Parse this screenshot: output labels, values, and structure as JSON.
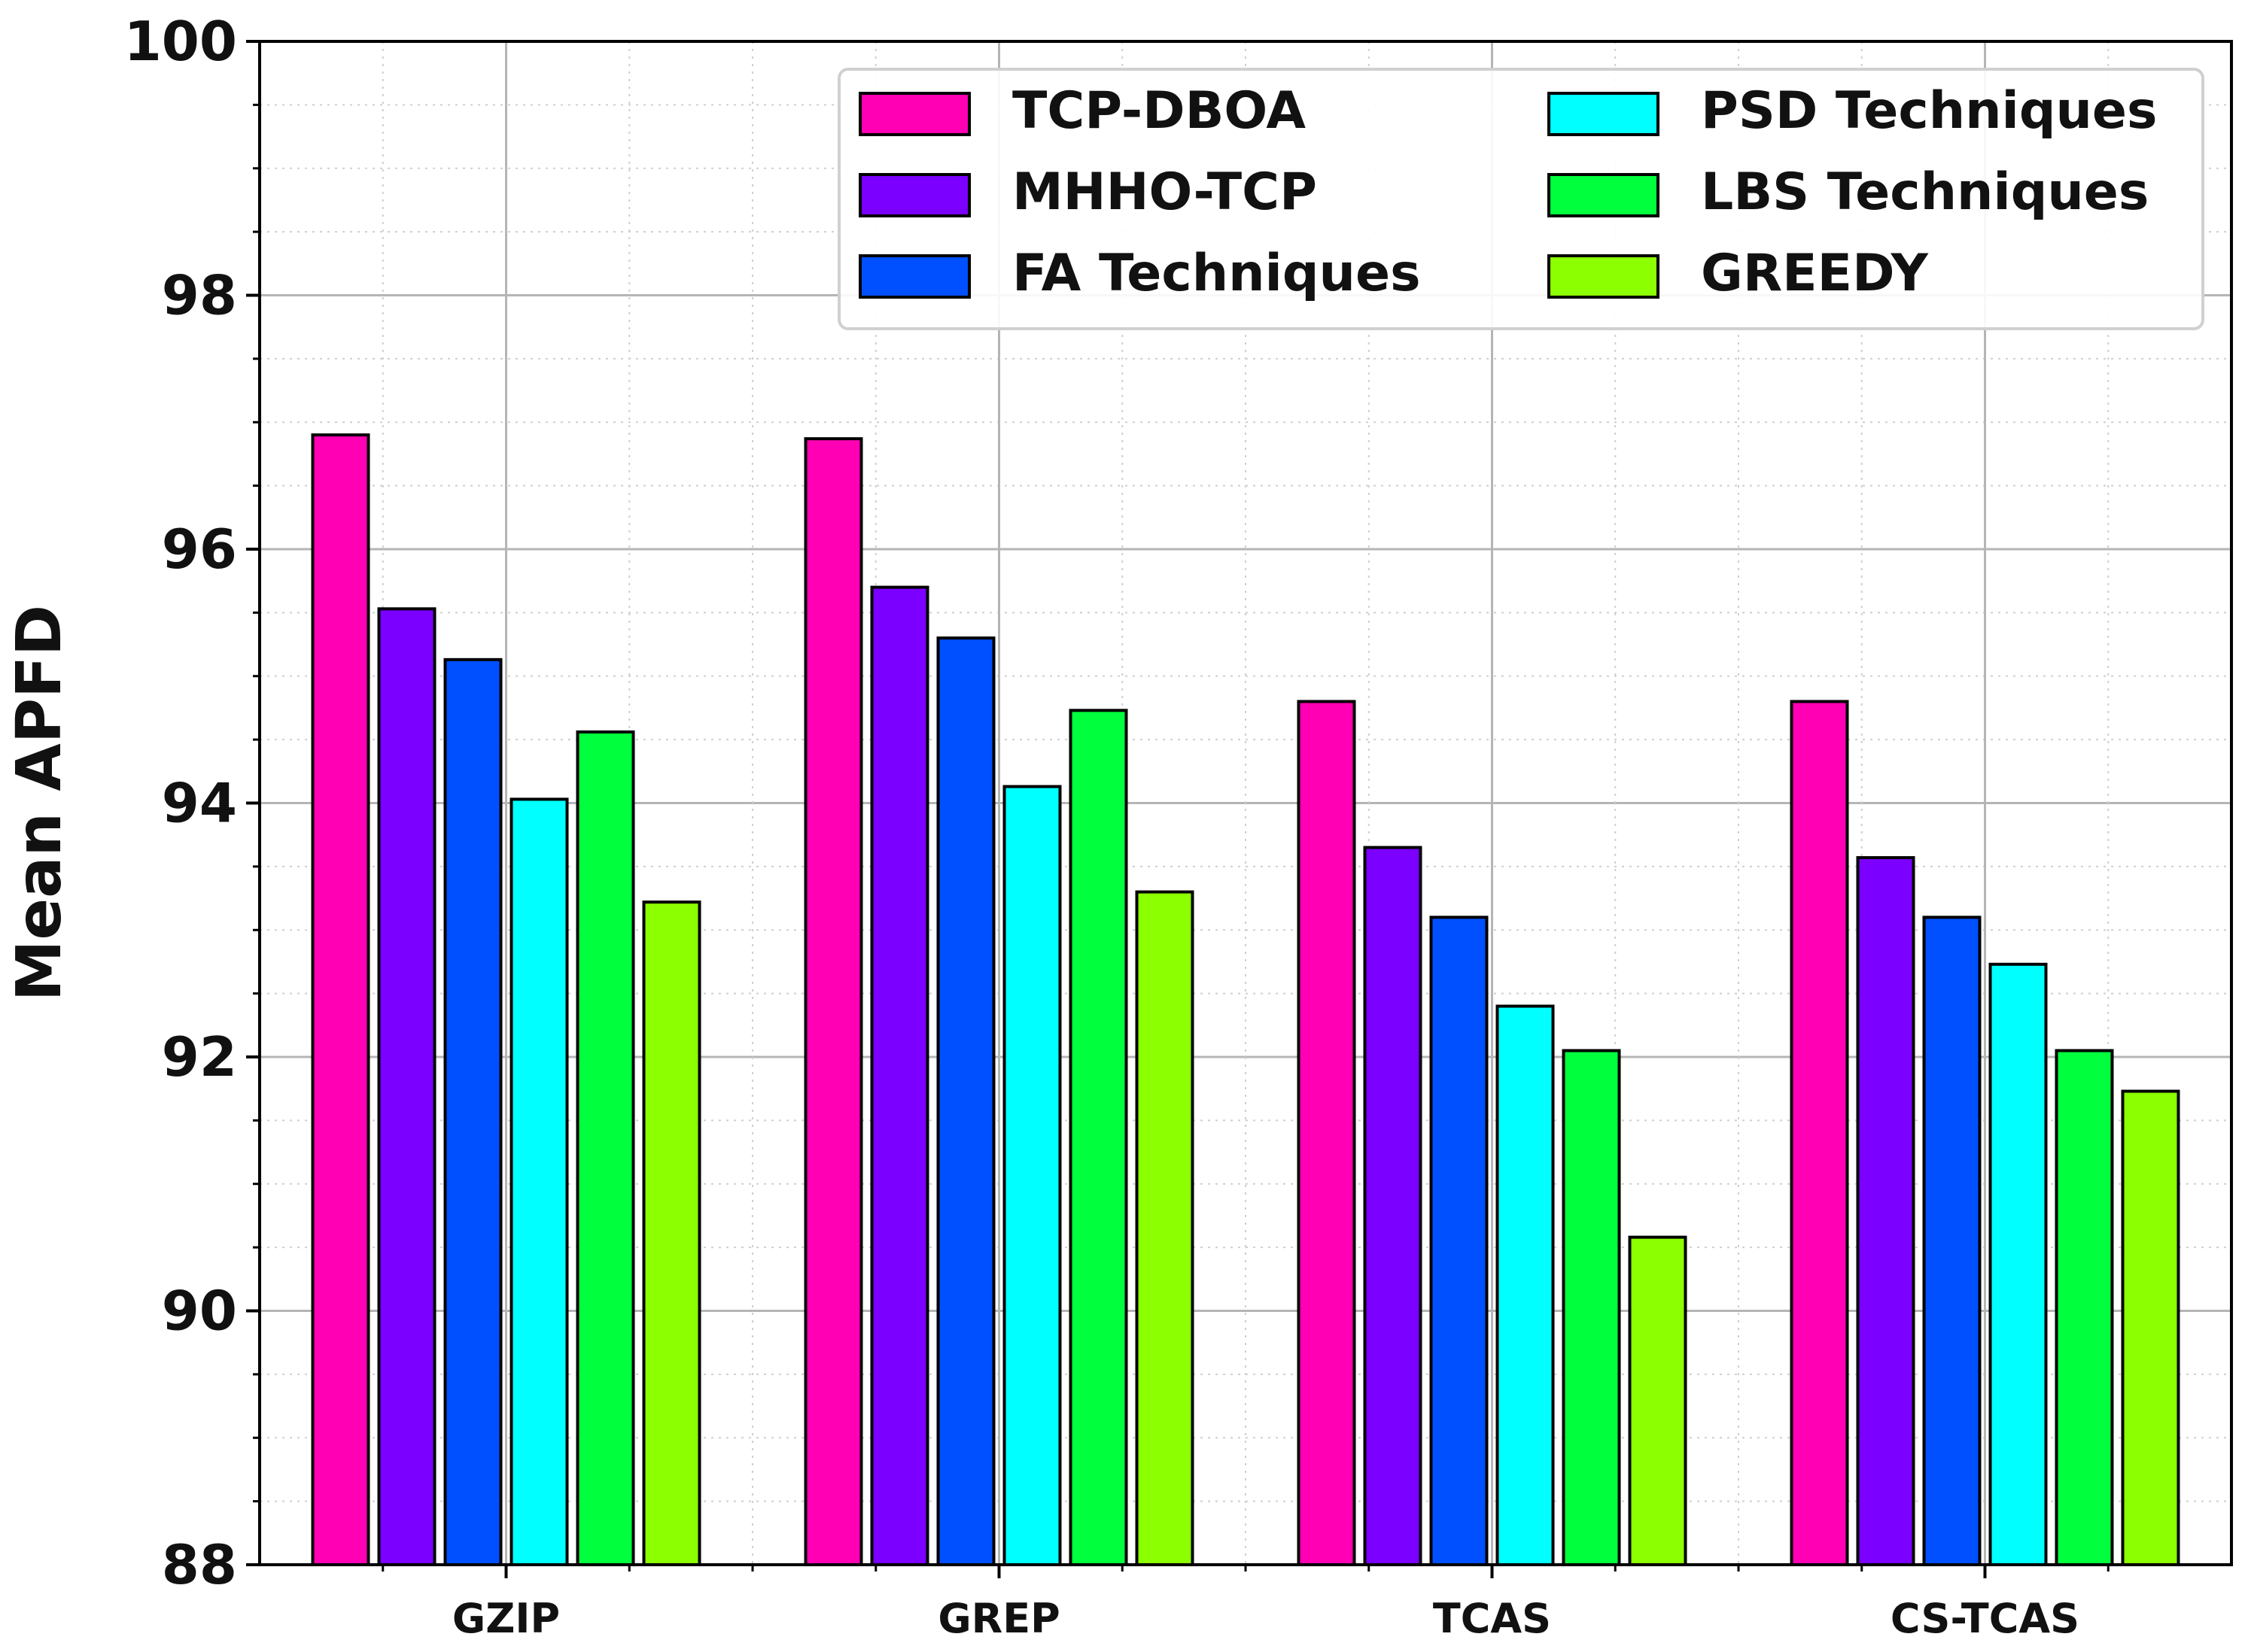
{
  "chart_data": {
    "type": "bar",
    "title": "",
    "xlabel": "",
    "ylabel": "Mean APFD",
    "ylim": [
      88,
      100
    ],
    "yticks": [
      "88",
      "90",
      "92",
      "94",
      "96",
      "98",
      "100"
    ],
    "grid": "on (major and minor, dotted)",
    "legend_position": "top-right",
    "categories": [
      "GZIP",
      "GREP",
      "TCAS",
      "CS-TCAS"
    ],
    "series": [
      {
        "name": "TCP-DBOA",
        "color": "#ff00b4",
        "values": [
          96.9,
          96.87,
          94.8,
          94.8
        ]
      },
      {
        "name": "MHHO-TCP",
        "color": "#7b00ff",
        "values": [
          95.53,
          95.7,
          93.65,
          93.57
        ]
      },
      {
        "name": "FA Techniques",
        "color": "#0050ff",
        "values": [
          95.13,
          95.3,
          93.1,
          93.1
        ]
      },
      {
        "name": "PSD Techniques",
        "color": "#00ffff",
        "values": [
          94.03,
          94.13,
          92.4,
          92.73
        ]
      },
      {
        "name": "LBS Techniques",
        "color": "#00ff3c",
        "values": [
          94.56,
          94.73,
          92.05,
          92.05
        ]
      },
      {
        "name": "GREEDY",
        "color": "#8cff00",
        "values": [
          93.22,
          93.3,
          90.58,
          91.73
        ]
      }
    ]
  }
}
